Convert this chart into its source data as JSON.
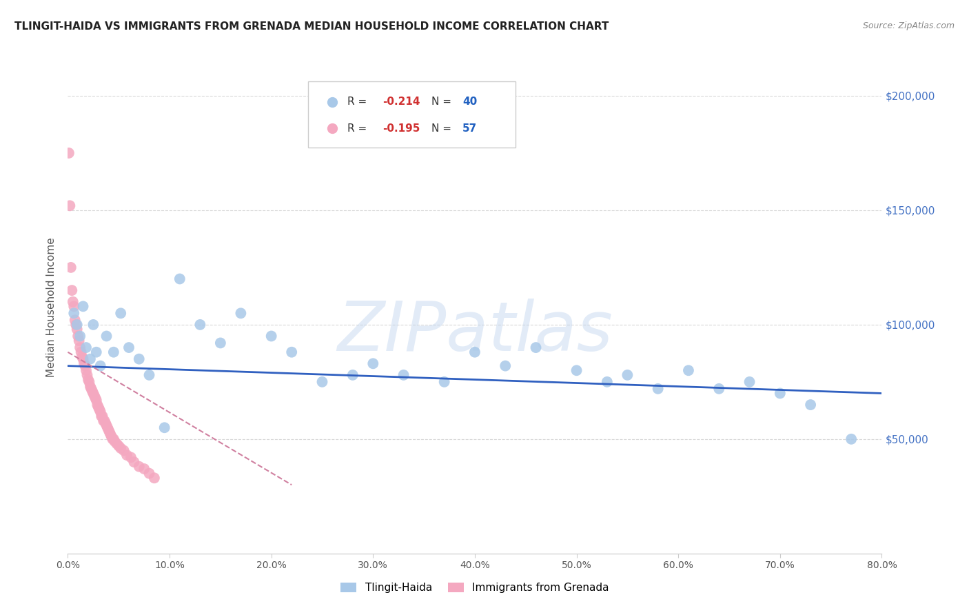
{
  "title": "TLINGIT-HAIDA VS IMMIGRANTS FROM GRENADA MEDIAN HOUSEHOLD INCOME CORRELATION CHART",
  "source": "Source: ZipAtlas.com",
  "ylabel": "Median Household Income",
  "xlabel_ticks": [
    "0.0%",
    "10.0%",
    "20.0%",
    "30.0%",
    "40.0%",
    "50.0%",
    "60.0%",
    "70.0%",
    "80.0%"
  ],
  "ytick_labels": [
    "$50,000",
    "$100,000",
    "$150,000",
    "$200,000"
  ],
  "ytick_values": [
    50000,
    100000,
    150000,
    200000
  ],
  "xlim": [
    0.0,
    0.8
  ],
  "ylim": [
    0,
    215000
  ],
  "blue_label": "Tlingit-Haida",
  "pink_label": "Immigrants from Grenada",
  "blue_R": -0.214,
  "blue_N": 40,
  "pink_R": -0.195,
  "pink_N": 57,
  "blue_color": "#a8c8e8",
  "pink_color": "#f4a8c0",
  "blue_line_color": "#3060c0",
  "pink_line_color": "#d080a0",
  "watermark": "ZIPatlas",
  "background_color": "#ffffff",
  "grid_color": "#d8d8d8",
  "blue_x": [
    0.006,
    0.009,
    0.012,
    0.015,
    0.018,
    0.022,
    0.025,
    0.028,
    0.032,
    0.038,
    0.045,
    0.052,
    0.06,
    0.07,
    0.08,
    0.095,
    0.11,
    0.13,
    0.15,
    0.17,
    0.2,
    0.22,
    0.25,
    0.28,
    0.3,
    0.33,
    0.37,
    0.4,
    0.43,
    0.46,
    0.5,
    0.53,
    0.55,
    0.58,
    0.61,
    0.64,
    0.67,
    0.7,
    0.73,
    0.77
  ],
  "blue_y": [
    105000,
    100000,
    95000,
    108000,
    90000,
    85000,
    100000,
    88000,
    82000,
    95000,
    88000,
    105000,
    90000,
    85000,
    78000,
    55000,
    120000,
    100000,
    92000,
    105000,
    95000,
    88000,
    75000,
    78000,
    83000,
    78000,
    75000,
    88000,
    82000,
    90000,
    80000,
    75000,
    78000,
    72000,
    80000,
    72000,
    75000,
    70000,
    65000,
    50000
  ],
  "pink_x": [
    0.001,
    0.002,
    0.003,
    0.004,
    0.005,
    0.006,
    0.007,
    0.008,
    0.009,
    0.01,
    0.011,
    0.012,
    0.013,
    0.014,
    0.015,
    0.016,
    0.017,
    0.018,
    0.019,
    0.02,
    0.021,
    0.022,
    0.023,
    0.024,
    0.025,
    0.026,
    0.027,
    0.028,
    0.029,
    0.03,
    0.031,
    0.032,
    0.033,
    0.034,
    0.035,
    0.036,
    0.037,
    0.038,
    0.039,
    0.04,
    0.041,
    0.042,
    0.043,
    0.044,
    0.045,
    0.046,
    0.048,
    0.05,
    0.052,
    0.055,
    0.058,
    0.062,
    0.065,
    0.07,
    0.075,
    0.08,
    0.085
  ],
  "pink_y": [
    175000,
    152000,
    125000,
    115000,
    110000,
    108000,
    102000,
    100000,
    98000,
    95000,
    93000,
    90000,
    88000,
    86000,
    85000,
    83000,
    82000,
    80000,
    78000,
    76000,
    75000,
    73000,
    72000,
    71000,
    70000,
    69000,
    68000,
    67000,
    65000,
    64000,
    63000,
    62000,
    60000,
    60000,
    58000,
    58000,
    57000,
    56000,
    55000,
    54000,
    53000,
    52000,
    51000,
    50000,
    50000,
    49000,
    48000,
    47000,
    46000,
    45000,
    43000,
    42000,
    40000,
    38000,
    37000,
    35000,
    33000
  ],
  "blue_trend_x": [
    0.0,
    0.8
  ],
  "blue_trend_y": [
    82000,
    70000
  ],
  "pink_trend_x": [
    0.0,
    0.22
  ],
  "pink_trend_y": [
    88000,
    30000
  ]
}
